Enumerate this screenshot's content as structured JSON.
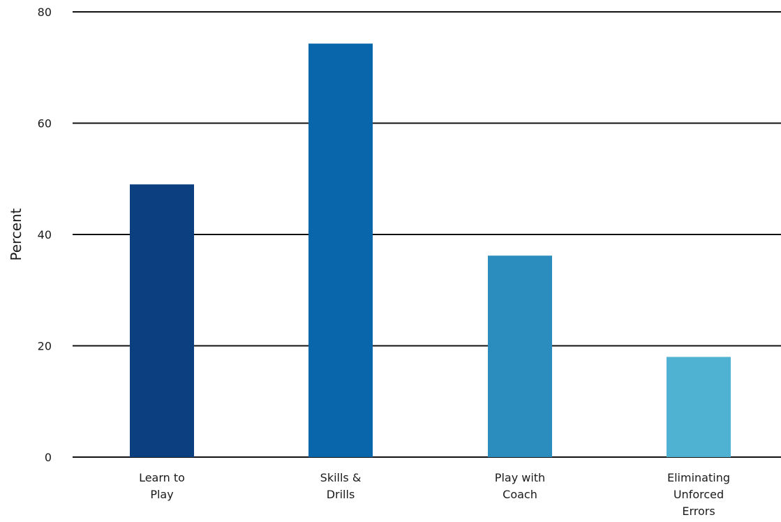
{
  "chart_data": {
    "type": "bar",
    "title": "",
    "xlabel": "",
    "ylabel": "Percent",
    "ylim": [
      0,
      80
    ],
    "yticks": [
      0,
      20,
      40,
      60,
      80
    ],
    "grid": true,
    "legend": "none",
    "categories": [
      [
        "Learn to",
        "Play"
      ],
      [
        "Skills &",
        "Drills"
      ],
      [
        "Play with",
        "Coach"
      ],
      [
        "Eliminating",
        "Unforced",
        "Errors"
      ]
    ],
    "values": [
      49,
      74.3,
      36.2,
      18
    ],
    "colors": [
      "#0b3f7f",
      "#0a66ab",
      "#2b8cbe",
      "#4fb2d3"
    ]
  }
}
